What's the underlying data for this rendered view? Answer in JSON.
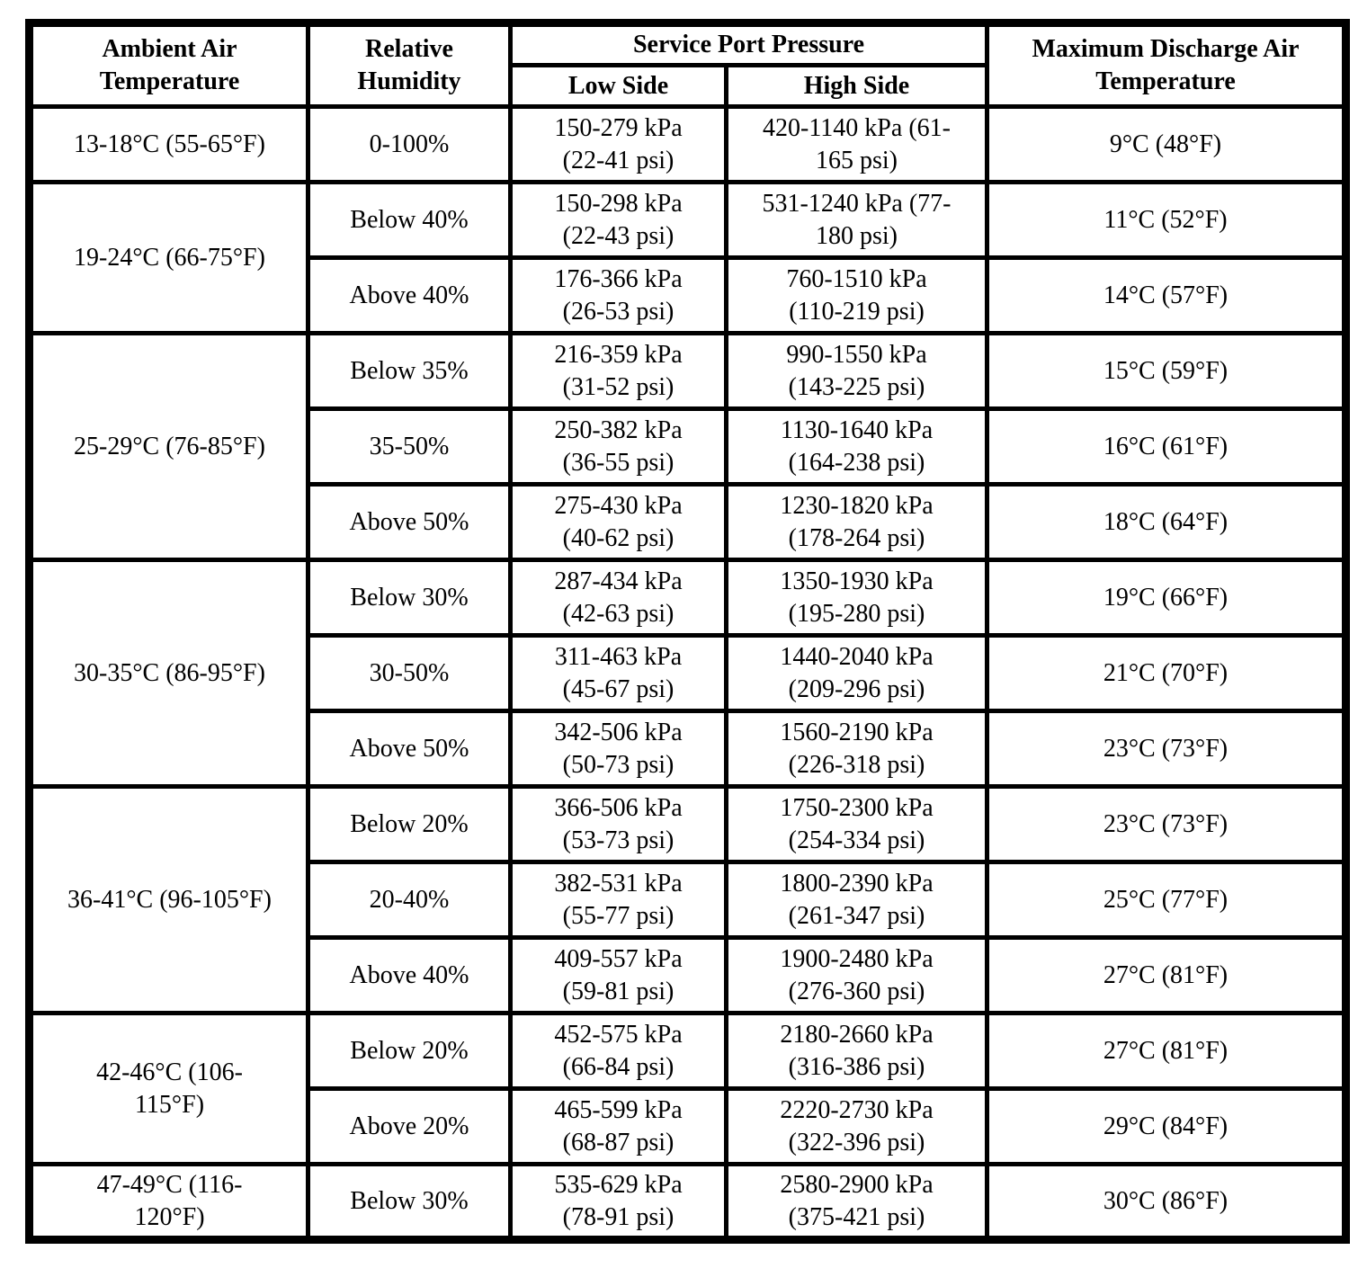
{
  "colors": {
    "background": "#ffffff",
    "text": "#000000",
    "border": "#000000"
  },
  "table": {
    "headers": {
      "ambient": "Ambient Air Temperature",
      "humidity": "Relative Humidity",
      "pressure": "Service Port Pressure",
      "low_side": "Low Side",
      "high_side": "High Side",
      "discharge": "Maximum Discharge Air Temperature"
    },
    "groups": [
      {
        "ambient": "13-18°C (55-65°F)",
        "rows": [
          {
            "humidity": "0-100%",
            "low": {
              "kpa": "150-279 kPa",
              "psi": "(22-41 psi)"
            },
            "high": {
              "kpa": "420-1140 kPa",
              "psi": "(61-165 psi)"
            },
            "discharge": "9°C (48°F)"
          }
        ]
      },
      {
        "ambient": "19-24°C (66-75°F)",
        "rows": [
          {
            "humidity": "Below 40%",
            "low": {
              "kpa": "150-298 kPa",
              "psi": "(22-43 psi)"
            },
            "high": {
              "kpa": "531-1240 kPa",
              "psi": "(77-180 psi)"
            },
            "discharge": "11°C (52°F)"
          },
          {
            "humidity": "Above 40%",
            "low": {
              "kpa": "176-366 kPa",
              "psi": "(26-53 psi)"
            },
            "high": {
              "kpa": "760-1510 kPa",
              "psi": "(110-219 psi)"
            },
            "discharge": "14°C (57°F)"
          }
        ]
      },
      {
        "ambient": "25-29°C (76-85°F)",
        "rows": [
          {
            "humidity": "Below 35%",
            "low": {
              "kpa": "216-359 kPa",
              "psi": "(31-52 psi)"
            },
            "high": {
              "kpa": "990-1550 kPa",
              "psi": "(143-225 psi)"
            },
            "discharge": "15°C (59°F)"
          },
          {
            "humidity": "35-50%",
            "low": {
              "kpa": "250-382 kPa",
              "psi": "(36-55 psi)"
            },
            "high": {
              "kpa": "1130-1640 kPa",
              "psi": "(164-238 psi)"
            },
            "discharge": "16°C (61°F)"
          },
          {
            "humidity": "Above 50%",
            "low": {
              "kpa": "275-430 kPa",
              "psi": "(40-62 psi)"
            },
            "high": {
              "kpa": "1230-1820 kPa",
              "psi": "(178-264 psi)"
            },
            "discharge": "18°C (64°F)"
          }
        ]
      },
      {
        "ambient": "30-35°C (86-95°F)",
        "rows": [
          {
            "humidity": "Below 30%",
            "low": {
              "kpa": "287-434 kPa",
              "psi": "(42-63 psi)"
            },
            "high": {
              "kpa": "1350-1930 kPa",
              "psi": "(195-280 psi)"
            },
            "discharge": "19°C (66°F)"
          },
          {
            "humidity": "30-50%",
            "low": {
              "kpa": "311-463 kPa",
              "psi": "(45-67 psi)"
            },
            "high": {
              "kpa": "1440-2040 kPa",
              "psi": "(209-296 psi)"
            },
            "discharge": "21°C (70°F)"
          },
          {
            "humidity": "Above 50%",
            "low": {
              "kpa": "342-506 kPa",
              "psi": "(50-73 psi)"
            },
            "high": {
              "kpa": "1560-2190 kPa",
              "psi": "(226-318 psi)"
            },
            "discharge": "23°C (73°F)"
          }
        ]
      },
      {
        "ambient": "36-41°C (96-105°F)",
        "rows": [
          {
            "humidity": "Below 20%",
            "low": {
              "kpa": "366-506 kPa",
              "psi": "(53-73 psi)"
            },
            "high": {
              "kpa": "1750-2300 kPa",
              "psi": "(254-334 psi)"
            },
            "discharge": "23°C (73°F)"
          },
          {
            "humidity": "20-40%",
            "low": {
              "kpa": "382-531 kPa",
              "psi": "(55-77 psi)"
            },
            "high": {
              "kpa": "1800-2390 kPa",
              "psi": "(261-347 psi)"
            },
            "discharge": "25°C (77°F)"
          },
          {
            "humidity": "Above 40%",
            "low": {
              "kpa": "409-557 kPa",
              "psi": "(59-81 psi)"
            },
            "high": {
              "kpa": "1900-2480 kPa",
              "psi": "(276-360 psi)"
            },
            "discharge": "27°C (81°F)"
          }
        ]
      },
      {
        "ambient": "42-46°C (106-115°F)",
        "rows": [
          {
            "humidity": "Below 20%",
            "low": {
              "kpa": "452-575 kPa",
              "psi": "(66-84 psi)"
            },
            "high": {
              "kpa": "2180-2660 kPa",
              "psi": "(316-386 psi)"
            },
            "discharge": "27°C (81°F)"
          },
          {
            "humidity": "Above 20%",
            "low": {
              "kpa": "465-599 kPa",
              "psi": "(68-87 psi)"
            },
            "high": {
              "kpa": "2220-2730 kPa",
              "psi": "(322-396 psi)"
            },
            "discharge": "29°C (84°F)"
          }
        ]
      },
      {
        "ambient": "47-49°C (116-120°F)",
        "rows": [
          {
            "humidity": "Below 30%",
            "low": {
              "kpa": "535-629 kPa",
              "psi": "(78-91 psi)"
            },
            "high": {
              "kpa": "2580-2900 kPa",
              "psi": "(375-421 psi)"
            },
            "discharge": "30°C (86°F)"
          }
        ]
      }
    ]
  }
}
